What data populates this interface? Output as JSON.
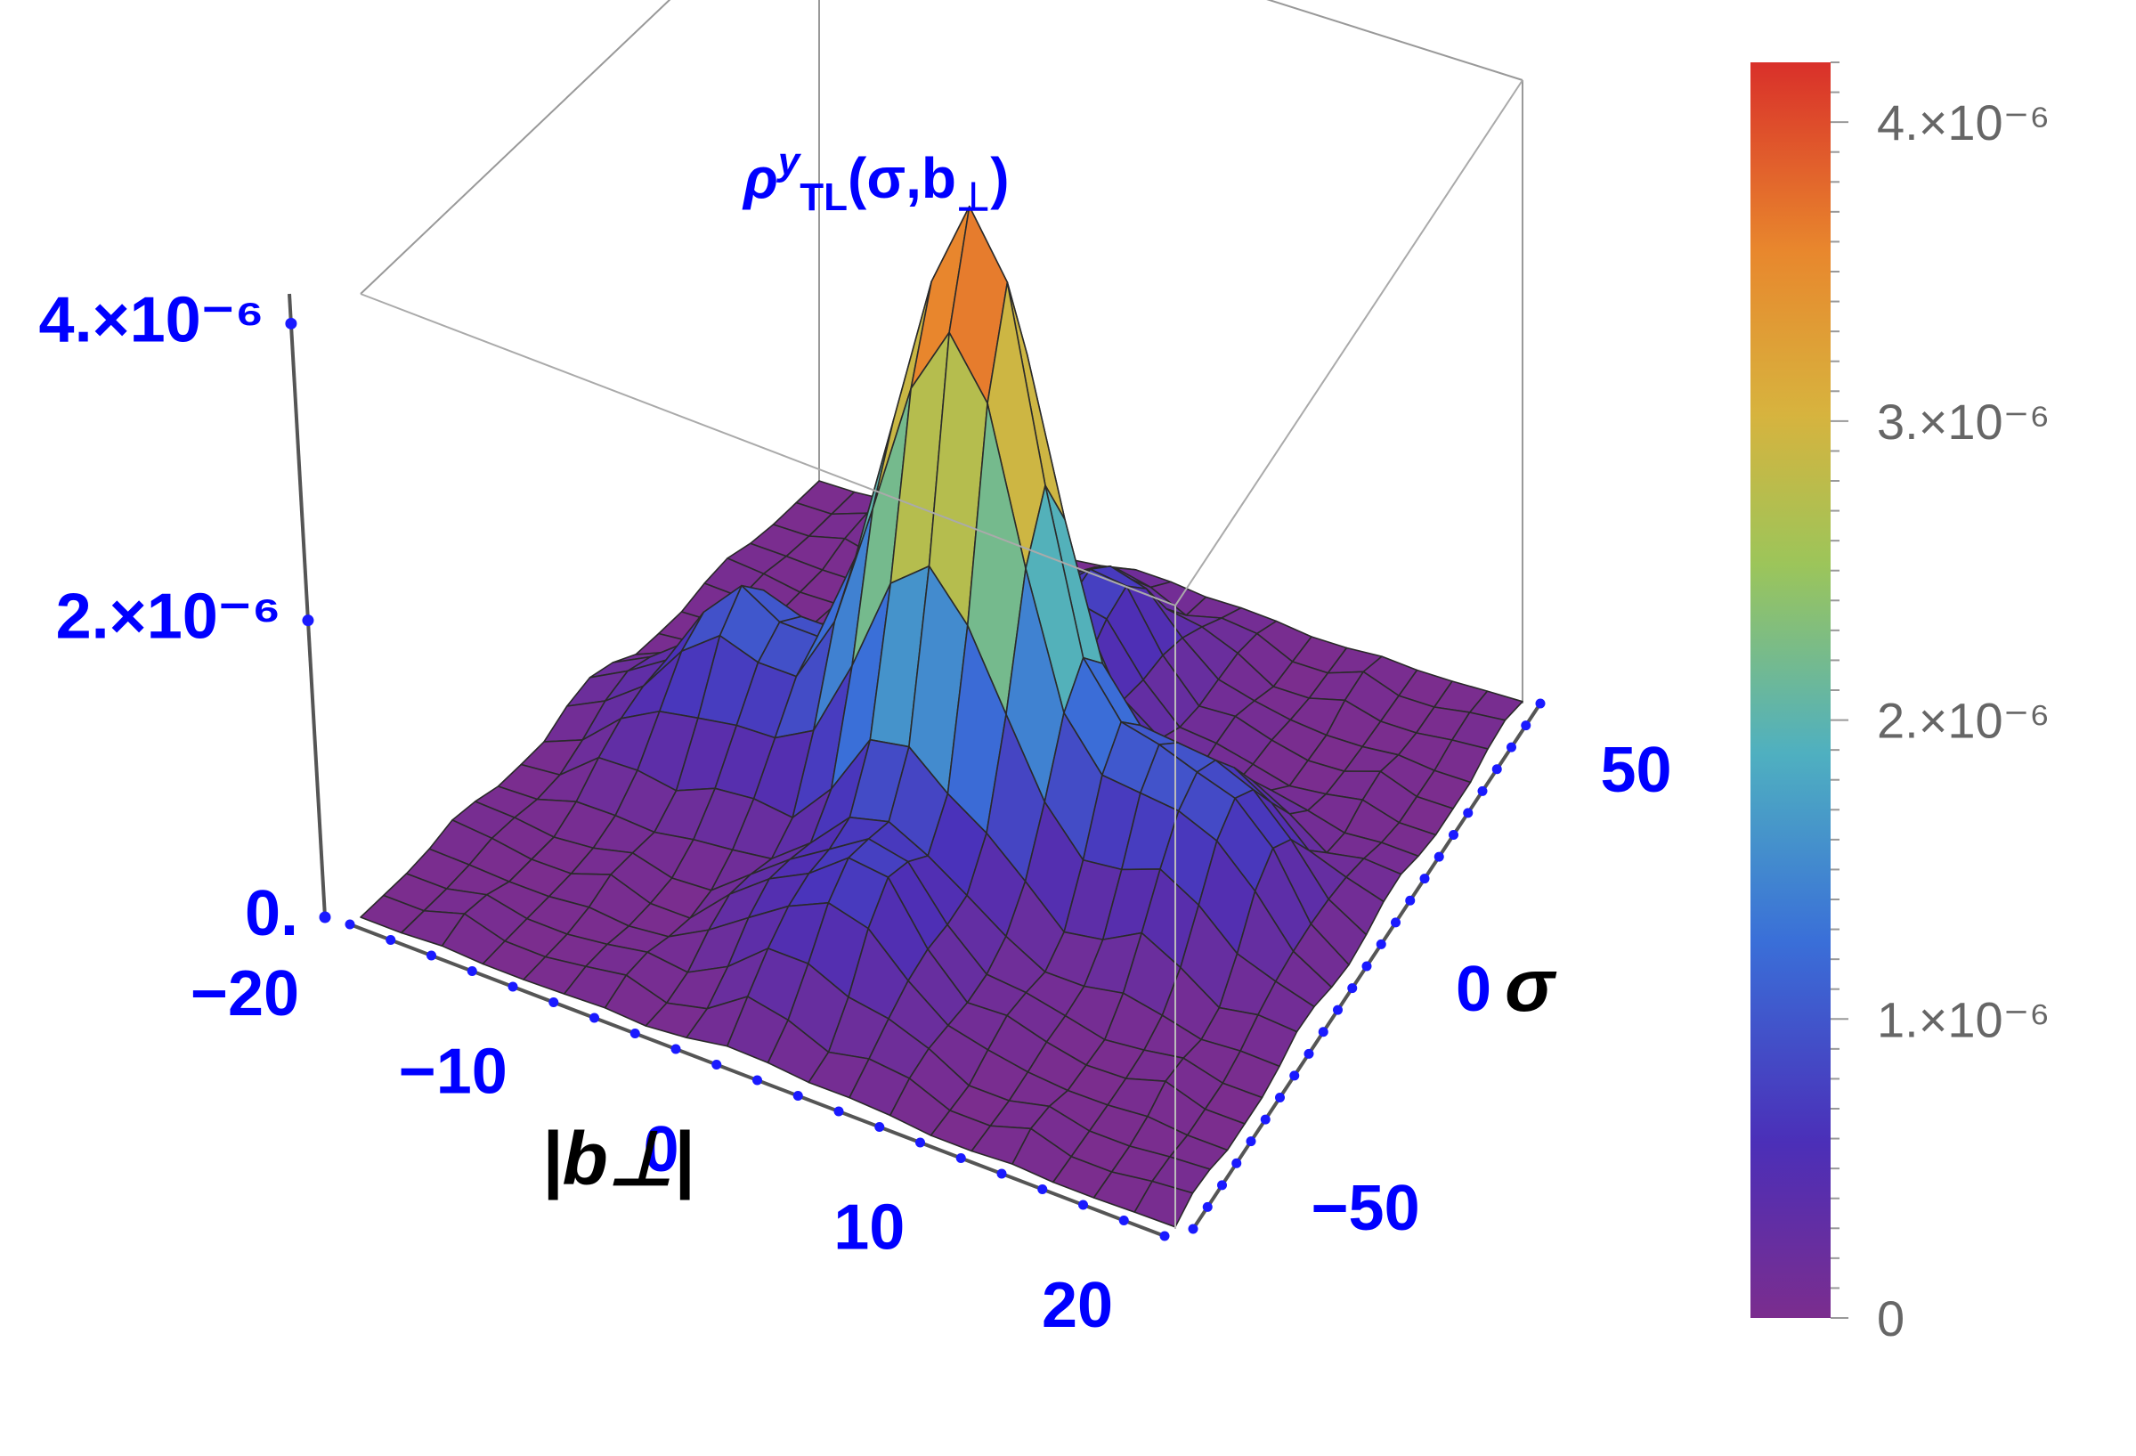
{
  "chart_data": {
    "type": "surface3d",
    "title": "ρʸTL(σ,b⊥)",
    "title_parts": {
      "rho": "ρ",
      "sup": "y",
      "sub": "TL",
      "args_open": "(σ,b",
      "perp": "⊥",
      "args_close": ")"
    },
    "xlabel": "|b⊥|",
    "ylabel": "σ",
    "x_ticks": [
      "−20",
      "−10",
      "0",
      "10",
      "20"
    ],
    "x_range": [
      -20,
      20
    ],
    "y_ticks": [
      "−50",
      "0",
      "50"
    ],
    "y_range": [
      -60,
      60
    ],
    "z_ticks": [
      "0.",
      "2.×10⁻⁶",
      "4.×10⁻⁶"
    ],
    "z_range": [
      0,
      4.2e-06
    ],
    "peak": {
      "x": 0,
      "y": 0,
      "z": 4.2e-06
    },
    "side_ridges": [
      {
        "x": -12,
        "y": 0,
        "z": 1e-06
      },
      {
        "x": 12,
        "y": 0,
        "z": 1e-06
      },
      {
        "x": 0,
        "y": 35,
        "z": 8e-07
      },
      {
        "x": 0,
        "y": -35,
        "z": 8e-07
      }
    ],
    "colorbar": {
      "ticks": [
        "0",
        "1.×10⁻⁶",
        "2.×10⁻⁶",
        "3.×10⁻⁶",
        "4.×10⁻⁶"
      ],
      "values": [
        0,
        1e-06,
        2e-06,
        3e-06,
        4e-06
      ],
      "range": [
        0,
        4.2e-06
      ],
      "colors": [
        "#7b2d8e",
        "#4b2fb8",
        "#3a6fd8",
        "#4fb0c0",
        "#9cc55a",
        "#d7b33e",
        "#e8872d",
        "#d9302a"
      ]
    }
  }
}
